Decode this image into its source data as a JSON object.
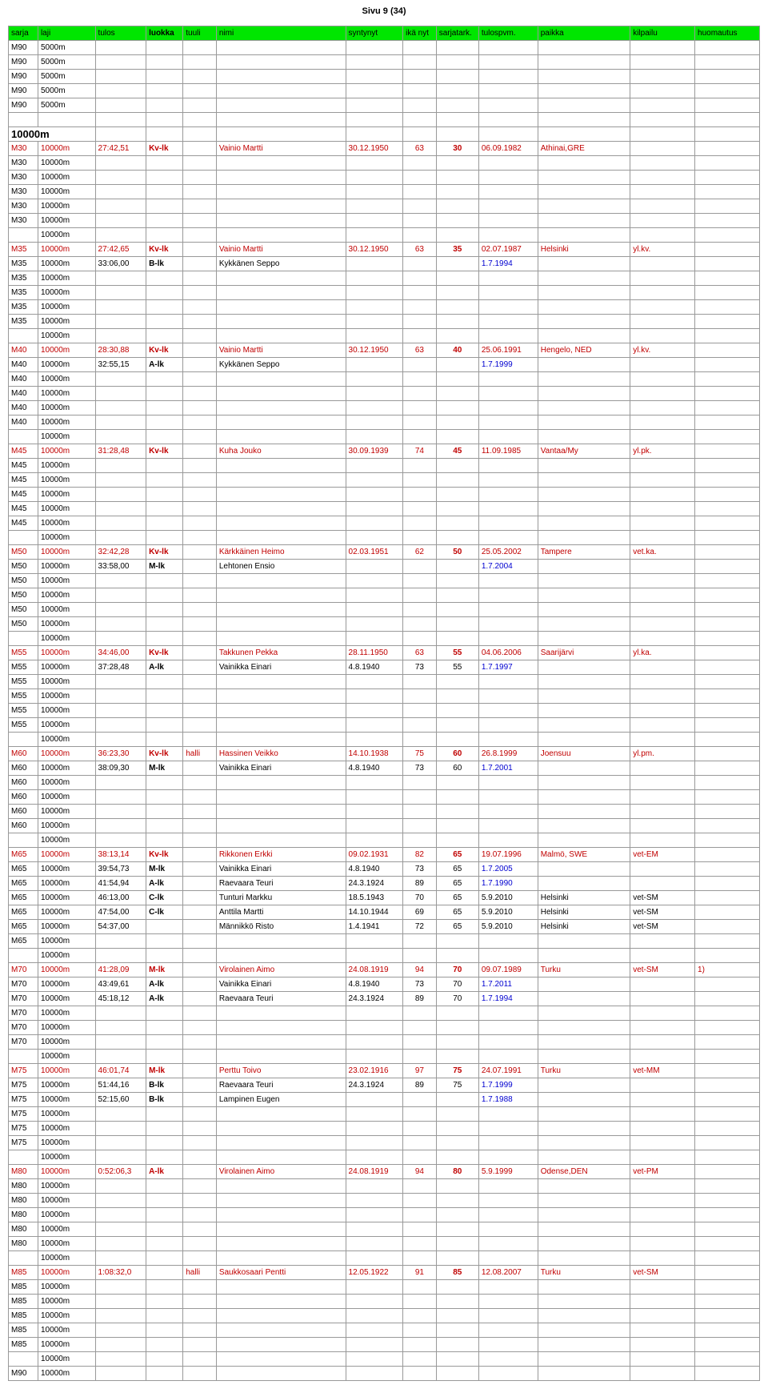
{
  "page": {
    "header": "Sivu 9 (34)"
  },
  "columns": [
    {
      "key": "sarja",
      "label": "sarja",
      "cls": "c-sarja"
    },
    {
      "key": "laji",
      "label": "laji",
      "cls": "c-laji"
    },
    {
      "key": "tulos",
      "label": "tulos",
      "cls": "c-tulos"
    },
    {
      "key": "luokka",
      "label": "luokka",
      "cls": "c-luokka",
      "bold": true
    },
    {
      "key": "tuuli",
      "label": "tuuli",
      "cls": "c-tuuli"
    },
    {
      "key": "nimi",
      "label": "nimi",
      "cls": "c-nimi"
    },
    {
      "key": "syntynyt",
      "label": "syntynyt",
      "cls": "c-synt"
    },
    {
      "key": "ika",
      "label": "ikä nyt",
      "cls": "c-ika"
    },
    {
      "key": "sarjatark",
      "label": "sarjatark.",
      "cls": "c-sarjatark"
    },
    {
      "key": "tulospvm",
      "label": "tulospvm.",
      "cls": "c-tulospvm"
    },
    {
      "key": "paikka",
      "label": "paikka",
      "cls": "c-paikka"
    },
    {
      "key": "kilpailu",
      "label": "kilpailu",
      "cls": "c-kilpailu"
    },
    {
      "key": "huomautus",
      "label": "huomautus",
      "cls": "c-huom"
    }
  ],
  "style": {
    "header_bg": "#00e600",
    "record_color": "#c00000",
    "date_color": "#0000d0",
    "border_color": "#999999"
  },
  "rows": [
    {
      "sarja": "M90",
      "laji": "5000m"
    },
    {
      "sarja": "M90",
      "laji": "5000m"
    },
    {
      "sarja": "M90",
      "laji": "5000m"
    },
    {
      "sarja": "M90",
      "laji": "5000m"
    },
    {
      "sarja": "M90",
      "laji": "5000m"
    },
    {
      "blank": true
    },
    {
      "section": "10000m"
    },
    {
      "record": true,
      "sarja": "M30",
      "laji": "10000m",
      "tulos": "27:42,51",
      "luokka": "Kv-lk",
      "nimi": "Vainio Martti",
      "syntynyt": "30.12.1950",
      "ika": "63",
      "sarjatark": "30",
      "tulospvm": "06.09.1982",
      "paikka": "Athinai,GRE"
    },
    {
      "sarja": "M30",
      "laji": "10000m"
    },
    {
      "sarja": "M30",
      "laji": "10000m"
    },
    {
      "sarja": "M30",
      "laji": "10000m"
    },
    {
      "sarja": "M30",
      "laji": "10000m"
    },
    {
      "sarja": "M30",
      "laji": "10000m"
    },
    {
      "laji": "10000m"
    },
    {
      "record": true,
      "sarja": "M35",
      "laji": "10000m",
      "tulos": "27:42,65",
      "luokka": "Kv-lk",
      "nimi": "Vainio Martti",
      "syntynyt": "30.12.1950",
      "ika": "63",
      "sarjatark": "35",
      "tulospvm": "02.07.1987",
      "paikka": "Helsinki",
      "kilpailu": "yl.kv."
    },
    {
      "sarja": "M35",
      "laji": "10000m",
      "tulos": "33:06,00",
      "luokka": "B-lk",
      "luokka_bold": true,
      "nimi": "Kykkänen Seppo",
      "tulospvm": "1.7.1994",
      "tulospvm_blue": true
    },
    {
      "sarja": "M35",
      "laji": "10000m"
    },
    {
      "sarja": "M35",
      "laji": "10000m"
    },
    {
      "sarja": "M35",
      "laji": "10000m"
    },
    {
      "sarja": "M35",
      "laji": "10000m"
    },
    {
      "laji": "10000m"
    },
    {
      "record": true,
      "sarja": "M40",
      "laji": "10000m",
      "tulos": "28:30,88",
      "luokka": "Kv-lk",
      "nimi": "Vainio Martti",
      "syntynyt": "30.12.1950",
      "ika": "63",
      "sarjatark": "40",
      "tulospvm": "25.06.1991",
      "paikka": "Hengelo, NED",
      "kilpailu": "yl.kv."
    },
    {
      "sarja": "M40",
      "laji": "10000m",
      "tulos": "32:55,15",
      "luokka": "A-lk",
      "luokka_bold": true,
      "nimi": "Kykkänen Seppo",
      "tulospvm": "1.7.1999",
      "tulospvm_blue": true
    },
    {
      "sarja": "M40",
      "laji": "10000m"
    },
    {
      "sarja": "M40",
      "laji": "10000m"
    },
    {
      "sarja": "M40",
      "laji": "10000m"
    },
    {
      "sarja": "M40",
      "laji": "10000m"
    },
    {
      "laji": "10000m"
    },
    {
      "record": true,
      "sarja": "M45",
      "laji": "10000m",
      "tulos": "31:28,48",
      "luokka": "Kv-lk",
      "nimi": "Kuha Jouko",
      "syntynyt": "30.09.1939",
      "ika": "74",
      "sarjatark": "45",
      "tulospvm": "11.09.1985",
      "paikka": "Vantaa/My",
      "kilpailu": "yl.pk."
    },
    {
      "sarja": "M45",
      "laji": "10000m"
    },
    {
      "sarja": "M45",
      "laji": "10000m"
    },
    {
      "sarja": "M45",
      "laji": "10000m"
    },
    {
      "sarja": "M45",
      "laji": "10000m"
    },
    {
      "sarja": "M45",
      "laji": "10000m"
    },
    {
      "laji": "10000m"
    },
    {
      "record": true,
      "sarja": "M50",
      "laji": "10000m",
      "tulos": "32:42,28",
      "luokka": "Kv-lk",
      "nimi": "Kärkkäinen Heimo",
      "syntynyt": "02.03.1951",
      "ika": "62",
      "sarjatark": "50",
      "tulospvm": "25.05.2002",
      "paikka": "Tampere",
      "kilpailu": "vet.ka."
    },
    {
      "sarja": "M50",
      "laji": "10000m",
      "tulos": "33:58,00",
      "luokka": "M-lk",
      "luokka_bold": true,
      "nimi": "Lehtonen Ensio",
      "tulospvm": "1.7.2004",
      "tulospvm_blue": true
    },
    {
      "sarja": "M50",
      "laji": "10000m"
    },
    {
      "sarja": "M50",
      "laji": "10000m"
    },
    {
      "sarja": "M50",
      "laji": "10000m"
    },
    {
      "sarja": "M50",
      "laji": "10000m"
    },
    {
      "laji": "10000m"
    },
    {
      "record": true,
      "sarja": "M55",
      "laji": "10000m",
      "tulos": "34:46,00",
      "luokka": "Kv-lk",
      "nimi": "Takkunen Pekka",
      "syntynyt": "28.11.1950",
      "ika": "63",
      "sarjatark": "55",
      "tulospvm": "04.06.2006",
      "paikka": "Saarijärvi",
      "kilpailu": "yl.ka."
    },
    {
      "sarja": "M55",
      "laji": "10000m",
      "tulos": "37:28,48",
      "luokka": "A-lk",
      "luokka_bold": true,
      "nimi": "Vainikka Einari",
      "syntynyt": "4.8.1940",
      "ika": "73",
      "sarjatark": "55",
      "tulospvm": "1.7.1997",
      "tulospvm_blue": true
    },
    {
      "sarja": "M55",
      "laji": "10000m"
    },
    {
      "sarja": "M55",
      "laji": "10000m"
    },
    {
      "sarja": "M55",
      "laji": "10000m"
    },
    {
      "sarja": "M55",
      "laji": "10000m"
    },
    {
      "laji": "10000m"
    },
    {
      "record": true,
      "sarja": "M60",
      "laji": "10000m",
      "tulos": "36:23,30",
      "luokka": "Kv-lk",
      "tuuli": "halli",
      "nimi": "Hassinen Veikko",
      "syntynyt": "14.10.1938",
      "ika": "75",
      "sarjatark": "60",
      "tulospvm": "26.8.1999",
      "paikka": "Joensuu",
      "kilpailu": "yl.pm."
    },
    {
      "sarja": "M60",
      "laji": "10000m",
      "tulos": "38:09,30",
      "luokka": "M-lk",
      "luokka_bold": true,
      "nimi": "Vainikka Einari",
      "syntynyt": "4.8.1940",
      "ika": "73",
      "sarjatark": "60",
      "tulospvm": "1.7.2001",
      "tulospvm_blue": true
    },
    {
      "sarja": "M60",
      "laji": "10000m"
    },
    {
      "sarja": "M60",
      "laji": "10000m"
    },
    {
      "sarja": "M60",
      "laji": "10000m"
    },
    {
      "sarja": "M60",
      "laji": "10000m"
    },
    {
      "laji": "10000m"
    },
    {
      "record": true,
      "sarja": "M65",
      "laji": "10000m",
      "tulos": "38:13,14",
      "luokka": "Kv-lk",
      "nimi": "Rikkonen Erkki",
      "syntynyt": "09.02.1931",
      "ika": "82",
      "sarjatark": "65",
      "tulospvm": "19.07.1996",
      "paikka": "Malmö, SWE",
      "kilpailu": "vet-EM"
    },
    {
      "sarja": "M65",
      "laji": "10000m",
      "tulos": "39:54,73",
      "luokka": "M-lk",
      "luokka_bold": true,
      "nimi": "Vainikka Einari",
      "syntynyt": "4.8.1940",
      "ika": "73",
      "sarjatark": "65",
      "tulospvm": "1.7.2005",
      "tulospvm_blue": true
    },
    {
      "sarja": "M65",
      "laji": "10000m",
      "tulos": "41:54,94",
      "luokka": "A-lk",
      "luokka_bold": true,
      "nimi": "Raevaara Teuri",
      "syntynyt": "24.3.1924",
      "ika": "89",
      "sarjatark": "65",
      "tulospvm": "1.7.1990",
      "tulospvm_blue": true
    },
    {
      "sarja": "M65",
      "laji": "10000m",
      "tulos": "46:13,00",
      "luokka": "C-lk",
      "luokka_bold": true,
      "nimi": "Tunturi Markku",
      "syntynyt": "18.5.1943",
      "ika": "70",
      "sarjatark": "65",
      "tulospvm": "5.9.2010",
      "paikka": "Helsinki",
      "kilpailu": "vet-SM"
    },
    {
      "sarja": "M65",
      "laji": "10000m",
      "tulos": "47:54,00",
      "luokka": "C-lk",
      "luokka_bold": true,
      "nimi": "Anttila Martti",
      "syntynyt": "14.10.1944",
      "ika": "69",
      "sarjatark": "65",
      "tulospvm": "5.9.2010",
      "paikka": "Helsinki",
      "kilpailu": "vet-SM"
    },
    {
      "sarja": "M65",
      "laji": "10000m",
      "tulos": "54:37,00",
      "nimi": "Männikkö Risto",
      "syntynyt": "1.4.1941",
      "ika": "72",
      "sarjatark": "65",
      "tulospvm": "5.9.2010",
      "paikka": "Helsinki",
      "kilpailu": "vet-SM"
    },
    {
      "sarja": "M65",
      "laji": "10000m"
    },
    {
      "laji": "10000m"
    },
    {
      "record": true,
      "sarja": "M70",
      "laji": "10000m",
      "tulos": "41:28,09",
      "luokka": "M-lk",
      "nimi": "Virolainen Aimo",
      "syntynyt": "24.08.1919",
      "ika": "94",
      "sarjatark": "70",
      "tulospvm": "09.07.1989",
      "paikka": "Turku",
      "kilpailu": "vet-SM",
      "huomautus": "1)"
    },
    {
      "sarja": "M70",
      "laji": "10000m",
      "tulos": "43:49,61",
      "luokka": "A-lk",
      "luokka_bold": true,
      "nimi": "Vainikka Einari",
      "syntynyt": "4.8.1940",
      "ika": "73",
      "sarjatark": "70",
      "tulospvm": "1.7.2011",
      "tulospvm_blue": true
    },
    {
      "sarja": "M70",
      "laji": "10000m",
      "tulos": "45:18,12",
      "luokka": "A-lk",
      "luokka_bold": true,
      "nimi": "Raevaara Teuri",
      "syntynyt": "24.3.1924",
      "ika": "89",
      "sarjatark": "70",
      "tulospvm": "1.7.1994",
      "tulospvm_blue": true
    },
    {
      "sarja": "M70",
      "laji": "10000m"
    },
    {
      "sarja": "M70",
      "laji": "10000m"
    },
    {
      "sarja": "M70",
      "laji": "10000m"
    },
    {
      "laji": "10000m"
    },
    {
      "record": true,
      "sarja": "M75",
      "laji": "10000m",
      "tulos": "46:01,74",
      "luokka": "M-lk",
      "nimi": "Perttu Toivo",
      "syntynyt": "23.02.1916",
      "ika": "97",
      "sarjatark": "75",
      "tulospvm": "24.07.1991",
      "paikka": "Turku",
      "kilpailu": "vet-MM"
    },
    {
      "sarja": "M75",
      "laji": "10000m",
      "tulos": "51:44,16",
      "luokka": "B-lk",
      "luokka_bold": true,
      "nimi": "Raevaara Teuri",
      "syntynyt": "24.3.1924",
      "ika": "89",
      "sarjatark": "75",
      "tulospvm": "1.7.1999",
      "tulospvm_blue": true
    },
    {
      "sarja": "M75",
      "laji": "10000m",
      "tulos": "52:15,60",
      "luokka": "B-lk",
      "luokka_bold": true,
      "nimi": "Lampinen Eugen",
      "tulospvm": "1.7.1988",
      "tulospvm_blue": true
    },
    {
      "sarja": "M75",
      "laji": "10000m"
    },
    {
      "sarja": "M75",
      "laji": "10000m"
    },
    {
      "sarja": "M75",
      "laji": "10000m"
    },
    {
      "laji": "10000m"
    },
    {
      "record": true,
      "sarja": "M80",
      "laji": "10000m",
      "tulos": "0:52:06,3",
      "luokka": "A-lk",
      "nimi": "Virolainen Aimo",
      "syntynyt": "24.08.1919",
      "ika": "94",
      "sarjatark": "80",
      "tulospvm": "5.9.1999",
      "paikka": "Odense,DEN",
      "kilpailu": "vet-PM"
    },
    {
      "sarja": "M80",
      "laji": "10000m"
    },
    {
      "sarja": "M80",
      "laji": "10000m"
    },
    {
      "sarja": "M80",
      "laji": "10000m"
    },
    {
      "sarja": "M80",
      "laji": "10000m"
    },
    {
      "sarja": "M80",
      "laji": "10000m"
    },
    {
      "laji": "10000m"
    },
    {
      "record": true,
      "sarja": "M85",
      "laji": "10000m",
      "tulos": "1:08:32,0",
      "tuuli": "halli",
      "nimi": "Saukkosaari Pentti",
      "syntynyt": "12.05.1922",
      "ika": "91",
      "sarjatark": "85",
      "tulospvm": "12.08.2007",
      "paikka": "Turku",
      "kilpailu": "vet-SM"
    },
    {
      "sarja": "M85",
      "laji": "10000m"
    },
    {
      "sarja": "M85",
      "laji": "10000m"
    },
    {
      "sarja": "M85",
      "laji": "10000m"
    },
    {
      "sarja": "M85",
      "laji": "10000m"
    },
    {
      "sarja": "M85",
      "laji": "10000m"
    },
    {
      "laji": "10000m"
    },
    {
      "sarja": "M90",
      "laji": "10000m"
    }
  ]
}
